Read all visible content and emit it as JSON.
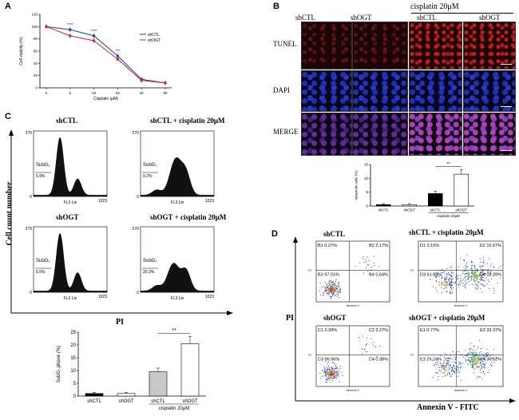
{
  "panels": {
    "a": "A",
    "b": "B",
    "c": "C",
    "d": "D"
  },
  "panel_a": {
    "legend": [
      "shCTL",
      "shOGT"
    ],
    "colors": {
      "shCTL": "#1f3a9e",
      "shOGT": "#c0282a"
    }
  },
  "panel_b": {
    "header_treatment": "cisplatin 20μM",
    "columns": [
      "shCTL",
      "shOGT",
      "shCTL",
      "shOGT"
    ],
    "rows": [
      "TUNEL",
      "DAPI",
      "MERGE"
    ],
    "sig": "**"
  },
  "panel_c": {
    "hist_titles": [
      "shCTL",
      "shCTL + cisplatin 20μM",
      "shOGT",
      "shOGT + cisplatin 20μM"
    ],
    "subg1_label": "SubG₁",
    "subg1_pcts": [
      "5.9%",
      "9.2%",
      "6.5%",
      "20.3%"
    ],
    "axis_x_label": "FL3 Lin",
    "tick_270": "270",
    "tick_0": "0",
    "tick_1023": "1023",
    "y_axis_label": "Cell count number",
    "x_axis_label": "PI",
    "sig": "**"
  },
  "panel_d": {
    "titles": [
      "shCTL",
      "shCTL + cisplatin 20μM",
      "shOGT",
      "shOGT + cisplatin 20μM"
    ],
    "quadrants": [
      {
        "ul": "B1 0.27%",
        "ur": "B2 2.17%",
        "ll": "B3 97.01%",
        "lr": "B4 0.64%"
      },
      {
        "ul": "D1 3.15%",
        "ur": "D2 16.67%",
        "ll": "D3 61.88%",
        "lr": "D4 18.29%"
      },
      {
        "ul": "C1 0.39%",
        "ur": "C2 2.27%",
        "ll": "C3 96.96%",
        "lr": "C4 0.38%"
      },
      {
        "ul": "E1 0.77%",
        "ur": "E2 33.37%",
        "ll": "E3 29.24%",
        "lr": "E4 36.62%"
      }
    ],
    "x_axis_label": "Annexin V - FITC",
    "y_axis_label": "PI",
    "sub_x": "Annexin V",
    "sub_y": "PI"
  },
  "chart_data": [
    {
      "type": "line",
      "title": "",
      "xlabel": "Cisplatin (μM)",
      "ylabel": "Cell viability (%)",
      "x": [
        0,
        5,
        10,
        20,
        40,
        80
      ],
      "ylim": [
        0,
        120
      ],
      "yticks": [
        0,
        20,
        40,
        60,
        80,
        100,
        120
      ],
      "series": [
        {
          "name": "shCTL",
          "values": [
            100,
            95,
            85,
            52,
            14,
            8
          ]
        },
        {
          "name": "shOGT",
          "values": [
            100,
            85,
            77,
            47,
            12,
            8
          ]
        }
      ],
      "annotations": [
        "****",
        "****",
        "***"
      ]
    },
    {
      "type": "bar",
      "title": "",
      "xlabel": "cisplatin 20μM",
      "ylabel": "Apoptotic cells (%)",
      "categories": [
        "shCTL",
        "shOGT",
        "shCTL",
        "shOGT"
      ],
      "values": [
        0.5,
        0.5,
        4.5,
        11.5
      ],
      "ylim": [
        0,
        15
      ],
      "yticks": [
        0,
        5,
        10,
        15
      ],
      "annotations": [
        "**"
      ]
    },
    {
      "type": "bar",
      "title": "",
      "xlabel": "cisplatin 20μM",
      "ylabel": "SubG₁ phase (%)",
      "categories": [
        "shCTL",
        "shOGT",
        "shCTL",
        "shOGT"
      ],
      "values": [
        1.0,
        1.0,
        9.5,
        20.5
      ],
      "ylim": [
        0,
        25
      ],
      "yticks": [
        0,
        5,
        10,
        15,
        20,
        25
      ],
      "annotations": [
        "**"
      ]
    }
  ]
}
